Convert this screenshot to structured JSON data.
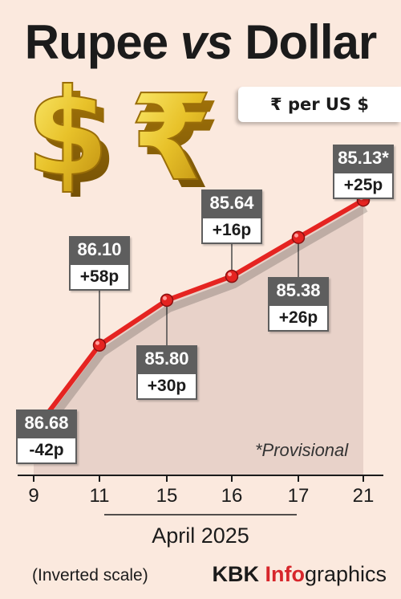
{
  "title_part1": "Rupee ",
  "title_vs": "vs",
  "title_part2": " Dollar",
  "unit_label": "₹ per US $",
  "note": "*Provisional",
  "x_title": "April 2025",
  "scale_note": "(Inverted scale)",
  "credit": {
    "brand": "KBK ",
    "red": "Info",
    "rest": "graphics"
  },
  "colors": {
    "background": "#fbe9de",
    "line": "#e52421",
    "label_box": "#5e5e5e",
    "area": "#e8d2c9"
  },
  "icons": [
    "dollar-sign-3d-icon",
    "rupee-sign-3d-icon"
  ],
  "chart_data": {
    "type": "line",
    "inverted_y": true,
    "x": [
      "9",
      "11",
      "15",
      "16",
      "17",
      "21"
    ],
    "values": [
      86.68,
      86.1,
      85.8,
      85.64,
      85.38,
      85.13
    ],
    "value_labels": [
      "86.68",
      "86.10",
      "85.80",
      "85.64",
      "85.38",
      "85.13*"
    ],
    "change_labels": [
      "-42p",
      "+58p",
      "+30p",
      "+16p",
      "+26p",
      "+25p"
    ],
    "label_placement": [
      "below",
      "above",
      "below",
      "above",
      "below",
      "above"
    ],
    "ylim": [
      86.8,
      85.0
    ],
    "xlabel": "April 2025",
    "grid": false
  }
}
